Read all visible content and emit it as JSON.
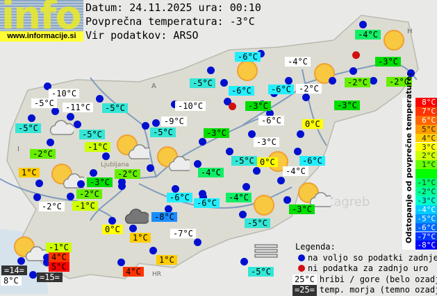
{
  "header": {
    "logo_word": "info",
    "logo_url": "www.informacije.si",
    "date_line": "Datum: 24.11.2025 ura: 00:10",
    "avg_line": "Povprečna temperatura: -3°C",
    "source_line": "Vir podatkov: ARSO"
  },
  "map": {
    "country_markers": [
      "A",
      "I",
      "H",
      "HR"
    ],
    "city_labels": [
      "Ljubljana",
      "Zagreb"
    ],
    "stations": [
      {
        "text": "-10°C",
        "kind": "hill"
      },
      {
        "text": "-5°C",
        "kind": "hill"
      },
      {
        "text": "-11°C",
        "kind": "hill"
      },
      {
        "text": "-5°C",
        "kind": "normal",
        "color": "#33e6d6"
      },
      {
        "text": "-5°C",
        "kind": "normal",
        "color": "#33e6d6"
      },
      {
        "text": "-5°C",
        "kind": "normal",
        "color": "#33e6d6"
      },
      {
        "text": "-10°C",
        "kind": "hill"
      },
      {
        "text": "-9°C",
        "kind": "hill"
      },
      {
        "text": "-5°C",
        "kind": "normal",
        "color": "#33e6d6"
      },
      {
        "text": "-1°C",
        "kind": "normal",
        "color": "#ccff00"
      },
      {
        "text": "-2°C",
        "kind": "normal",
        "color": "#66ee00"
      },
      {
        "text": "1°C",
        "kind": "normal",
        "color": "#ffcc00"
      },
      {
        "text": "-3°C",
        "kind": "normal",
        "color": "#00dd00"
      },
      {
        "text": "-2°C",
        "kind": "normal",
        "color": "#66ee00"
      },
      {
        "text": "-2°C",
        "kind": "normal",
        "color": "#66ee00"
      },
      {
        "text": "-2°C",
        "kind": "hill"
      },
      {
        "text": "-1°C",
        "kind": "normal",
        "color": "#ccff00"
      },
      {
        "text": "0°C",
        "kind": "normal",
        "color": "#ffff00"
      },
      {
        "text": "1°C",
        "kind": "normal",
        "color": "#ffcc00"
      },
      {
        "text": "-1°C",
        "kind": "normal",
        "color": "#ccff00"
      },
      {
        "text": "4°C",
        "kind": "normal",
        "color": "#ff3300"
      },
      {
        "text": "5°C",
        "kind": "normal",
        "color": "#ff0000"
      },
      {
        "text": "=14=",
        "kind": "sea"
      },
      {
        "text": "8°C",
        "kind": "hill"
      },
      {
        "text": "=15=",
        "kind": "sea"
      },
      {
        "text": "4°C",
        "kind": "normal",
        "color": "#ff3300"
      },
      {
        "text": "1°C",
        "kind": "normal",
        "color": "#ffcc00"
      },
      {
        "text": "-7°C",
        "kind": "hill"
      },
      {
        "text": "-8°C",
        "kind": "normal",
        "color": "#1a8cff"
      },
      {
        "text": "-6°C",
        "kind": "normal",
        "color": "#22eeff"
      },
      {
        "text": "-6°C",
        "kind": "normal",
        "color": "#22eeff"
      },
      {
        "text": "-4°C",
        "kind": "normal",
        "color": "#11ee66"
      },
      {
        "text": "-3°C",
        "kind": "normal",
        "color": "#00dd00"
      },
      {
        "text": "-3°C",
        "kind": "hill"
      },
      {
        "text": "-5°C",
        "kind": "normal",
        "color": "#33e6d6"
      },
      {
        "text": "0°C",
        "kind": "normal",
        "color": "#ffff00"
      },
      {
        "text": "-4°C",
        "kind": "hill"
      },
      {
        "text": "-6°C",
        "kind": "normal",
        "color": "#22eeff"
      },
      {
        "text": "-4°C",
        "kind": "normal",
        "color": "#11ee66"
      },
      {
        "text": "-3°C",
        "kind": "normal",
        "color": "#00dd00"
      },
      {
        "text": "-5°C",
        "kind": "normal",
        "color": "#33e6d6"
      },
      {
        "text": "-5°C",
        "kind": "normal",
        "color": "#33e6d6"
      },
      {
        "text": "-6°C",
        "kind": "normal",
        "color": "#22eeff"
      },
      {
        "text": "-4°C",
        "kind": "hill"
      },
      {
        "text": "-5°C",
        "kind": "normal",
        "color": "#33e6d6"
      },
      {
        "text": "-6°C",
        "kind": "normal",
        "color": "#22eeff"
      },
      {
        "text": "-6°C",
        "kind": "normal",
        "color": "#22eeff"
      },
      {
        "text": "-2°C",
        "kind": "hill"
      },
      {
        "text": "-3°C",
        "kind": "normal",
        "color": "#00dd00"
      },
      {
        "text": "-6°C",
        "kind": "hill"
      },
      {
        "text": "0°C",
        "kind": "normal",
        "color": "#ffff00"
      },
      {
        "text": "-3°C",
        "kind": "normal",
        "color": "#00dd00"
      },
      {
        "text": "-2°C",
        "kind": "normal",
        "color": "#66ee00"
      },
      {
        "text": "-2°C",
        "kind": "normal",
        "color": "#66ee00"
      },
      {
        "text": "-3°C",
        "kind": "normal",
        "color": "#00dd00"
      },
      {
        "text": "-4°C",
        "kind": "normal",
        "color": "#11ee66"
      },
      {
        "text": "-3°C",
        "kind": "normal",
        "color": "#00dd00"
      }
    ],
    "weather_icons": [
      "sun",
      "sun",
      "sun",
      "sun",
      "sun",
      "sun-cloud",
      "sun-cloud",
      "sun-cloud",
      "sun-cloud",
      "sun-cloud",
      "cloud",
      "dark-cloud",
      "fog"
    ]
  },
  "scale": {
    "title": "Odstopanje od povprečne temperature:",
    "items": [
      {
        "label": "8°C",
        "color": "#ff0000"
      },
      {
        "label": "7°C",
        "color": "#ff3300"
      },
      {
        "label": "6°C",
        "color": "#ff6600"
      },
      {
        "label": "5°C",
        "color": "#ff9900"
      },
      {
        "label": "4°C",
        "color": "#ffcc00"
      },
      {
        "label": "3°C",
        "color": "#ffff00"
      },
      {
        "label": "2°C",
        "color": "#ccff00"
      },
      {
        "label": "1°C",
        "color": "#66ff00"
      },
      {
        "label": "",
        "color": "#00ff00"
      },
      {
        "label": "-1°C",
        "color": "#00ff66"
      },
      {
        "label": "-2°C",
        "color": "#00ff99"
      },
      {
        "label": "-3°C",
        "color": "#00ffcc"
      },
      {
        "label": "-4°C",
        "color": "#00ccff"
      },
      {
        "label": "-5°C",
        "color": "#0099ff"
      },
      {
        "label": "-6°C",
        "color": "#0066ff"
      },
      {
        "label": "-7°C",
        "color": "#0033ff"
      },
      {
        "label": "-8°C",
        "color": "#0000ff"
      }
    ]
  },
  "legend": {
    "title": "Legenda:",
    "blue_dot": "na voljo so podatki zadnje ure",
    "red_dot": "ni podatka za zadnjo uro",
    "hill_sample": "25°C",
    "hill_text": "hribi / gore (belo ozadje)",
    "sea_sample": "=25=",
    "sea_text": "temp. morja (temno ozadje)",
    "blue": "#0010d0",
    "red": "#d01010"
  }
}
